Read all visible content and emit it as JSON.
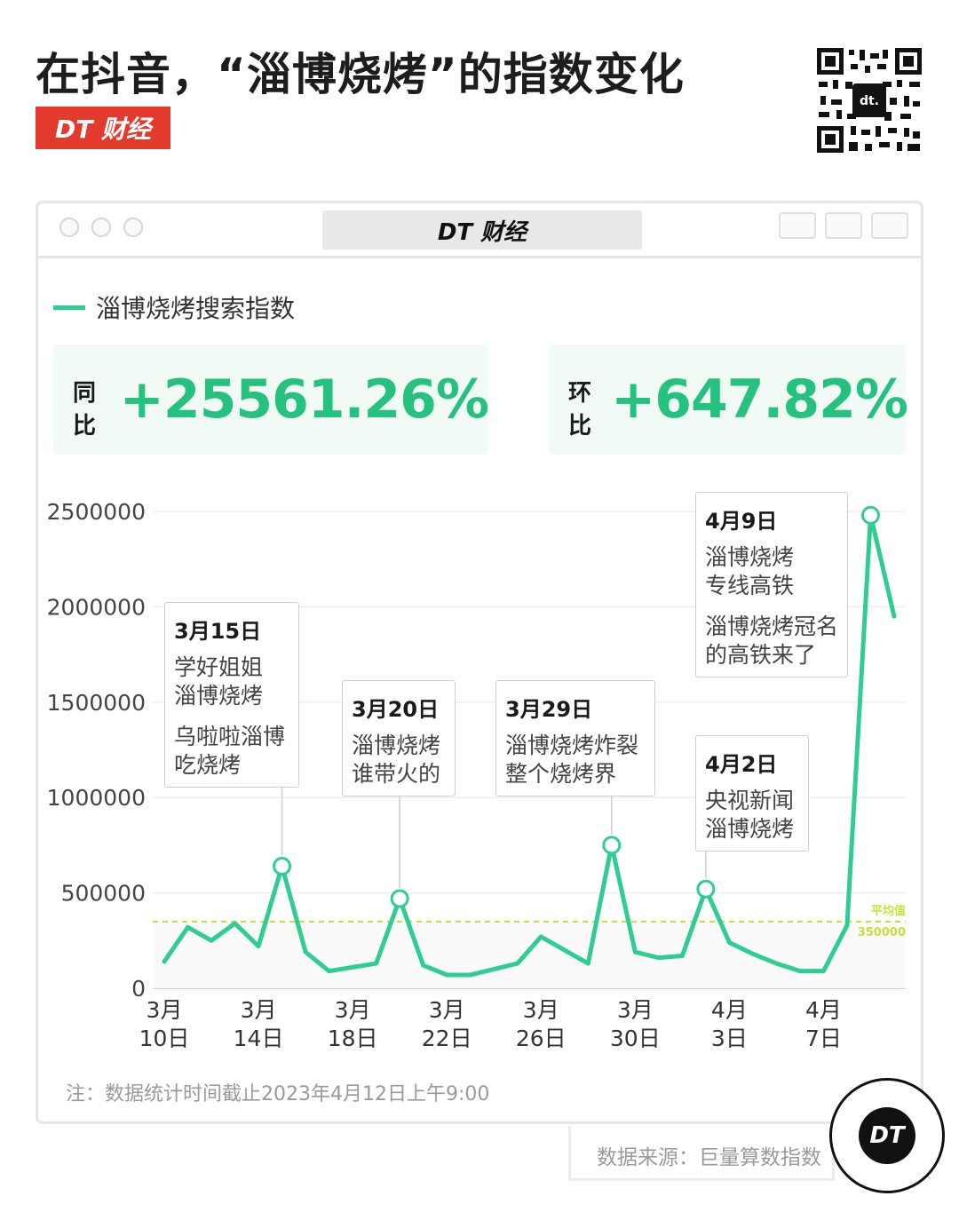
{
  "header": {
    "title": "在抖音，“淄博烧烤”的指数变化",
    "brand": "DT 财经"
  },
  "window": {
    "title": "DT 财经"
  },
  "legend": {
    "series_name": "淄博烧烤搜索指数"
  },
  "stats": {
    "yoy_label": "同比",
    "yoy_value": "+25561.26%",
    "mom_label": "环比",
    "mom_value": "+647.82%"
  },
  "colors": {
    "line": "#2fcd8f",
    "value": "#25c27f",
    "average": "#c6df3a",
    "brand_red": "#e23b2e"
  },
  "chart_data": {
    "type": "line",
    "title": "",
    "ylim": [
      0,
      2500000
    ],
    "y_ticks": [
      "2500000",
      "2000000",
      "1500000",
      "1000000",
      "500000",
      "0"
    ],
    "x_ticks": [
      {
        "month": "3月",
        "day": "10日",
        "date": "3月10日"
      },
      {
        "month": "3月",
        "day": "14日",
        "date": "3月14日"
      },
      {
        "month": "3月",
        "day": "18日",
        "date": "3月18日"
      },
      {
        "month": "3月",
        "day": "22日",
        "date": "3月22日"
      },
      {
        "month": "3月",
        "day": "26日",
        "date": "3月26日"
      },
      {
        "month": "3月",
        "day": "30日",
        "date": "3月30日"
      },
      {
        "month": "4月",
        "day": "3日",
        "date": "4月3日"
      },
      {
        "month": "4月",
        "day": "7日",
        "date": "4月7日"
      }
    ],
    "series": [
      {
        "name": "淄博烧烤搜索指数",
        "x": [
          "3月10日",
          "3月11日",
          "3月12日",
          "3月13日",
          "3月14日",
          "3月15日",
          "3月16日",
          "3月17日",
          "3月18日",
          "3月19日",
          "3月20日",
          "3月21日",
          "3月22日",
          "3月23日",
          "3月24日",
          "3月25日",
          "3月26日",
          "3月27日",
          "3月28日",
          "3月29日",
          "3月30日",
          "3月31日",
          "4月1日",
          "4月2日",
          "4月3日",
          "4月4日",
          "4月5日",
          "4月6日",
          "4月7日",
          "4月8日",
          "4月9日",
          "4月10日"
        ],
        "values": [
          140000,
          320000,
          250000,
          340000,
          220000,
          640000,
          190000,
          90000,
          110000,
          130000,
          470000,
          120000,
          70000,
          70000,
          100000,
          130000,
          270000,
          200000,
          130000,
          750000,
          190000,
          160000,
          170000,
          520000,
          240000,
          180000,
          130000,
          90000,
          90000,
          330000,
          2480000,
          1950000
        ]
      }
    ],
    "average": {
      "value": 350000,
      "label": "平均值",
      "value_label": "350000"
    },
    "annotations": [
      {
        "date": "3月15日",
        "lines": [
          "学好姐姐",
          "淄博烧烤"
        ],
        "lines2": [
          "乌啦啦淄博",
          "吃烧烤"
        ]
      },
      {
        "date": "3月20日",
        "lines": [
          "淄博烧烤",
          "谁带火的"
        ],
        "lines2": []
      },
      {
        "date": "3月29日",
        "lines": [
          "淄博烧烤炸裂",
          "整个烧烤界"
        ],
        "lines2": []
      },
      {
        "date": "4月2日",
        "lines": [
          "央视新闻",
          "淄博烧烤"
        ],
        "lines2": []
      },
      {
        "date": "4月9日",
        "lines": [
          "淄博烧烤",
          "专线高铁"
        ],
        "lines2": [
          "淄博烧烤冠名",
          "的高铁来了"
        ]
      }
    ]
  },
  "footer": {
    "note": "注：数据统计时间截止2023年4月12日上午9:00",
    "source": "数据来源：巨量算数指数",
    "logo": "DT"
  }
}
